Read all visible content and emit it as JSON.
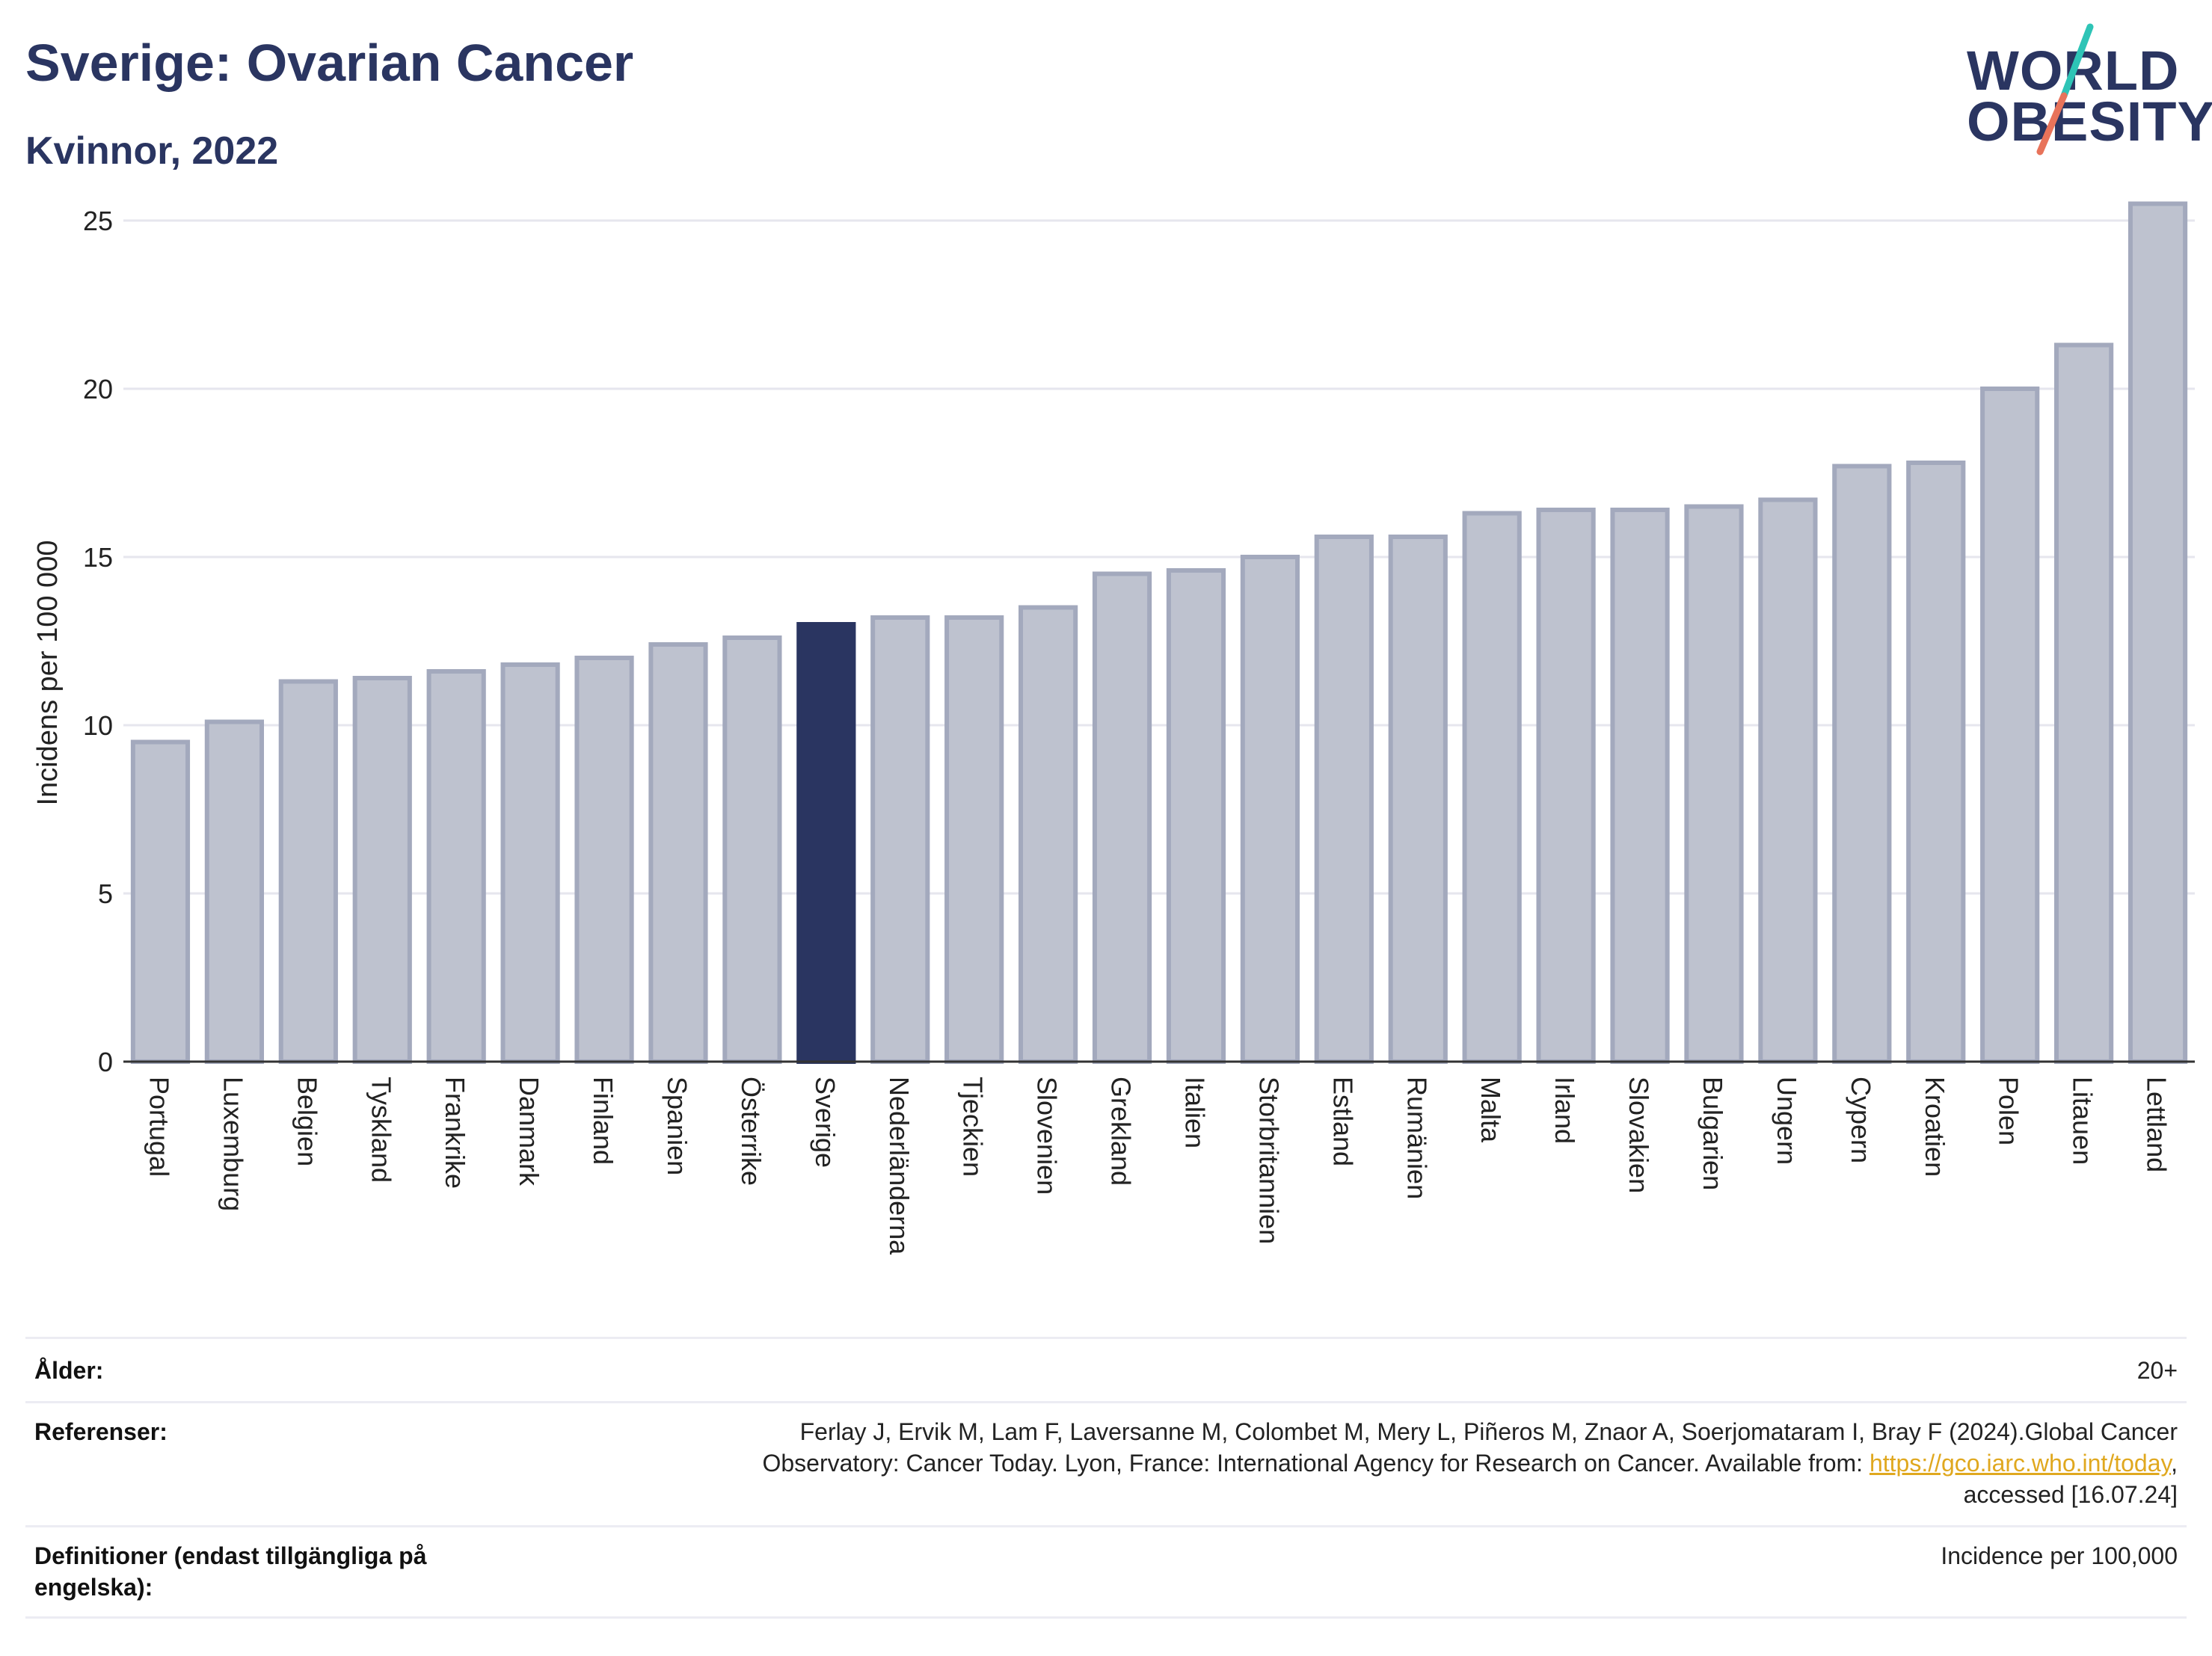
{
  "header": {
    "title": "Sverige: Ovarian Cancer",
    "subtitle": "Kvinnor, 2022"
  },
  "logo": {
    "line1": "WORLD",
    "line2": "OBESITY",
    "slash_colors": [
      "#2ec4b6",
      "#e8735a"
    ]
  },
  "chart_data": {
    "type": "bar",
    "title": "Sverige: Ovarian Cancer",
    "subtitle": "Kvinnor, 2022",
    "ylabel": "Incidens per 100 000",
    "xlabel": "",
    "ylim": [
      0,
      26
    ],
    "yticks": [
      0,
      5,
      10,
      15,
      20,
      25
    ],
    "grid": true,
    "highlight": "Sverige",
    "colors": {
      "bar": "#bec2cf",
      "bar_edge": "#a3a9bd",
      "highlight": "#2a3561",
      "grid": "#e6e6ee"
    },
    "categories": [
      "Portugal",
      "Luxemburg",
      "Belgien",
      "Tyskland",
      "Frankrike",
      "Danmark",
      "Finland",
      "Spanien",
      "Österrike",
      "Sverige",
      "Nederländerna",
      "Tjeckien",
      "Slovenien",
      "Grekland",
      "Italien",
      "Storbritannien",
      "Estland",
      "Rumänien",
      "Malta",
      "Irland",
      "Slovakien",
      "Bulgarien",
      "Ungern",
      "Cypern",
      "Kroatien",
      "Polen",
      "Litauen",
      "Lettland"
    ],
    "values": [
      9.5,
      10.1,
      11.3,
      11.4,
      11.6,
      11.8,
      12.0,
      12.4,
      12.6,
      13.0,
      13.2,
      13.2,
      13.5,
      14.5,
      14.6,
      15.0,
      15.6,
      15.6,
      16.3,
      16.4,
      16.4,
      16.5,
      16.7,
      17.7,
      17.8,
      20.0,
      21.3,
      25.5
    ]
  },
  "meta": {
    "age_label": "Ålder:",
    "age_value": "20+",
    "ref_label": "Referenser:",
    "ref_text_1": "Ferlay J, Ervik M, Lam F, Laversanne M, Colombet M, Mery L, Piñeros M, Znaor A, Soerjomataram I, Bray F (2024).Global Cancer",
    "ref_text_2": "Observatory: Cancer Today. Lyon, France: International Agency for Research on Cancer. Available from: ",
    "ref_link": "https://gco.iarc.who.int/today",
    "ref_text_2_end": ",",
    "ref_text_3": "accessed [16.07.24]",
    "def_label_1": "Definitioner (endast tillgängliga på",
    "def_label_2": "engelska):",
    "def_value": "Incidence per 100,000"
  }
}
